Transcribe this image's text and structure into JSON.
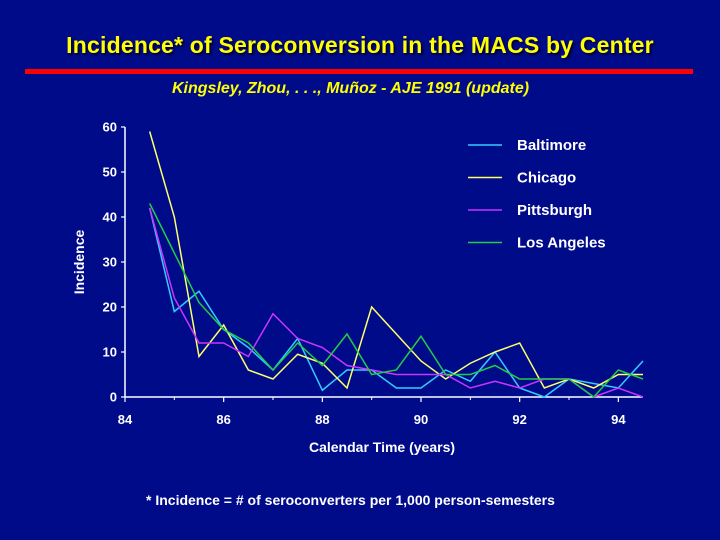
{
  "slide": {
    "title": "Incidence* of Seroconversion in the MACS by Center",
    "subtitle": "Kingsley, Zhou, . . ., Muñoz  -  AJE 1991  (update)",
    "footnote": "* Incidence = # of seroconverters per 1,000 person-semesters"
  },
  "colors": {
    "background": "#000b8a",
    "title": "#ffff00",
    "rule": "#ff0000",
    "axis": "#ffffff"
  },
  "chart_data": {
    "type": "line",
    "xlabel": "Calendar Time (years)",
    "ylabel": "Incidence",
    "xlim": [
      84,
      94.5
    ],
    "ylim": [
      0,
      60
    ],
    "xticks": [
      84,
      86,
      88,
      90,
      92,
      94
    ],
    "yticks": [
      0,
      10,
      20,
      30,
      40,
      50,
      60
    ],
    "grid": false,
    "legend_position": "top-right",
    "x": [
      84.5,
      85,
      85.5,
      86,
      86.5,
      87,
      87.5,
      88,
      88.5,
      89,
      89.5,
      90,
      90.5,
      91,
      91.5,
      92,
      92.5,
      93,
      93.5,
      94,
      94.5
    ],
    "series": [
      {
        "name": "Baltimore",
        "color": "#33ccff",
        "values": [
          42,
          19,
          23.5,
          15,
          11,
          6,
          13,
          1.5,
          6,
          6,
          2,
          2,
          6,
          3.5,
          10,
          2,
          0,
          4,
          3,
          2,
          8
        ]
      },
      {
        "name": "Chicago",
        "color": "#ffff66",
        "values": [
          59,
          40,
          9,
          16,
          6,
          4,
          9.5,
          7.5,
          2,
          20,
          14,
          8,
          4,
          7.5,
          10,
          12,
          2,
          4,
          2,
          5,
          5
        ]
      },
      {
        "name": "Pittsburgh",
        "color": "#cc33ff",
        "values": [
          42,
          22,
          12,
          12,
          9,
          18.5,
          13,
          11,
          7,
          6,
          5,
          5,
          5,
          2,
          3.5,
          2,
          4,
          4,
          0,
          2,
          0
        ]
      },
      {
        "name": "Los Angeles",
        "color": "#22cc44",
        "values": [
          43,
          32,
          21,
          15,
          12,
          6,
          12,
          7,
          14,
          5,
          6,
          13.5,
          5,
          5,
          7,
          4,
          4,
          4,
          0,
          6,
          4
        ]
      }
    ]
  }
}
